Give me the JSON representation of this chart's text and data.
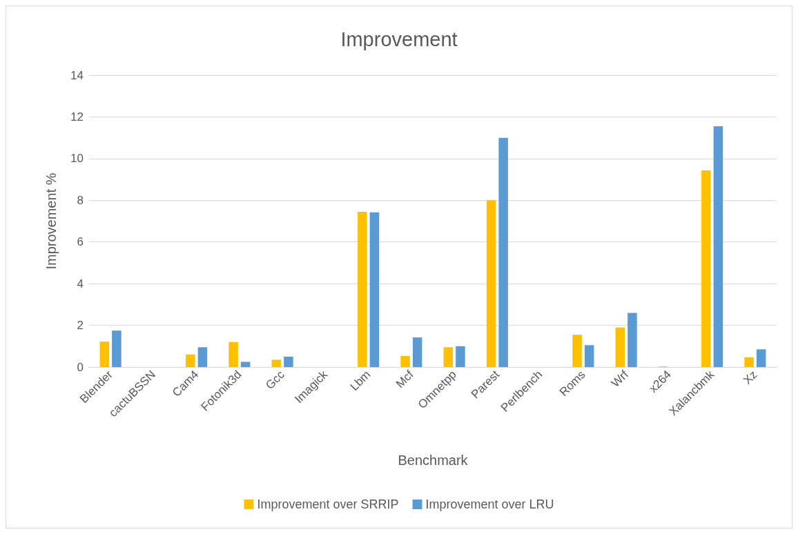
{
  "chart_data": {
    "type": "bar",
    "title": "Improvement",
    "xlabel": "Benchmark",
    "ylabel": "Improvement %",
    "categories": [
      "Blender",
      "cactuBSSN",
      "Cam4",
      "Fotonik3d",
      "Gcc",
      "Imagick",
      "Lbm",
      "Mcf",
      "Omnetpp",
      "Parest",
      "Perlbench",
      "Roms",
      "Wrf",
      "x264",
      "Xalancbmk",
      "Xz"
    ],
    "series": [
      {
        "name": "Improvement over SRRIP",
        "color": "#ffc000",
        "values": [
          1.22,
          0,
          0.6,
          1.2,
          0.35,
          0,
          7.45,
          0.53,
          0.95,
          8.0,
          0,
          1.55,
          1.9,
          0.03,
          9.43,
          0.47
        ]
      },
      {
        "name": "Improvement over LRU",
        "color": "#5b9bd5",
        "values": [
          1.75,
          0,
          0.95,
          0.25,
          0.5,
          0,
          7.42,
          1.42,
          1.0,
          11.0,
          0,
          1.05,
          2.6,
          null,
          11.55,
          0.85
        ]
      }
    ],
    "ylim": [
      0,
      14
    ],
    "yticks": [
      0,
      2,
      4,
      6,
      8,
      10,
      12,
      14
    ],
    "grid": "y",
    "legend": "bottom"
  }
}
